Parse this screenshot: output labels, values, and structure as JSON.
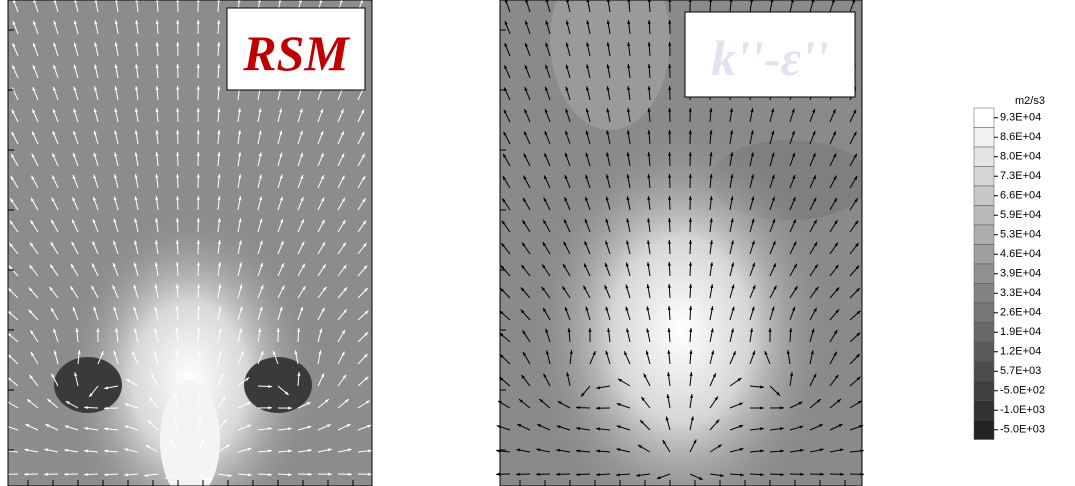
{
  "panels": [
    {
      "label": "RSM"
    },
    {
      "label": "k''-ε''"
    }
  ],
  "legend": {
    "unit": "m2/s3",
    "levels": [
      "9.3E+04",
      "8.6E+04",
      "8.0E+04",
      "7.3E+04",
      "6.6E+04",
      "5.9E+04",
      "5.3E+04",
      "4.6E+04",
      "3.9E+04",
      "3.3E+04",
      "2.6E+04",
      "1.9E+04",
      "1.2E+04",
      "5.7E+03",
      "-5.0E+02",
      "-1.0E+03",
      "-5.0E+03"
    ]
  }
}
